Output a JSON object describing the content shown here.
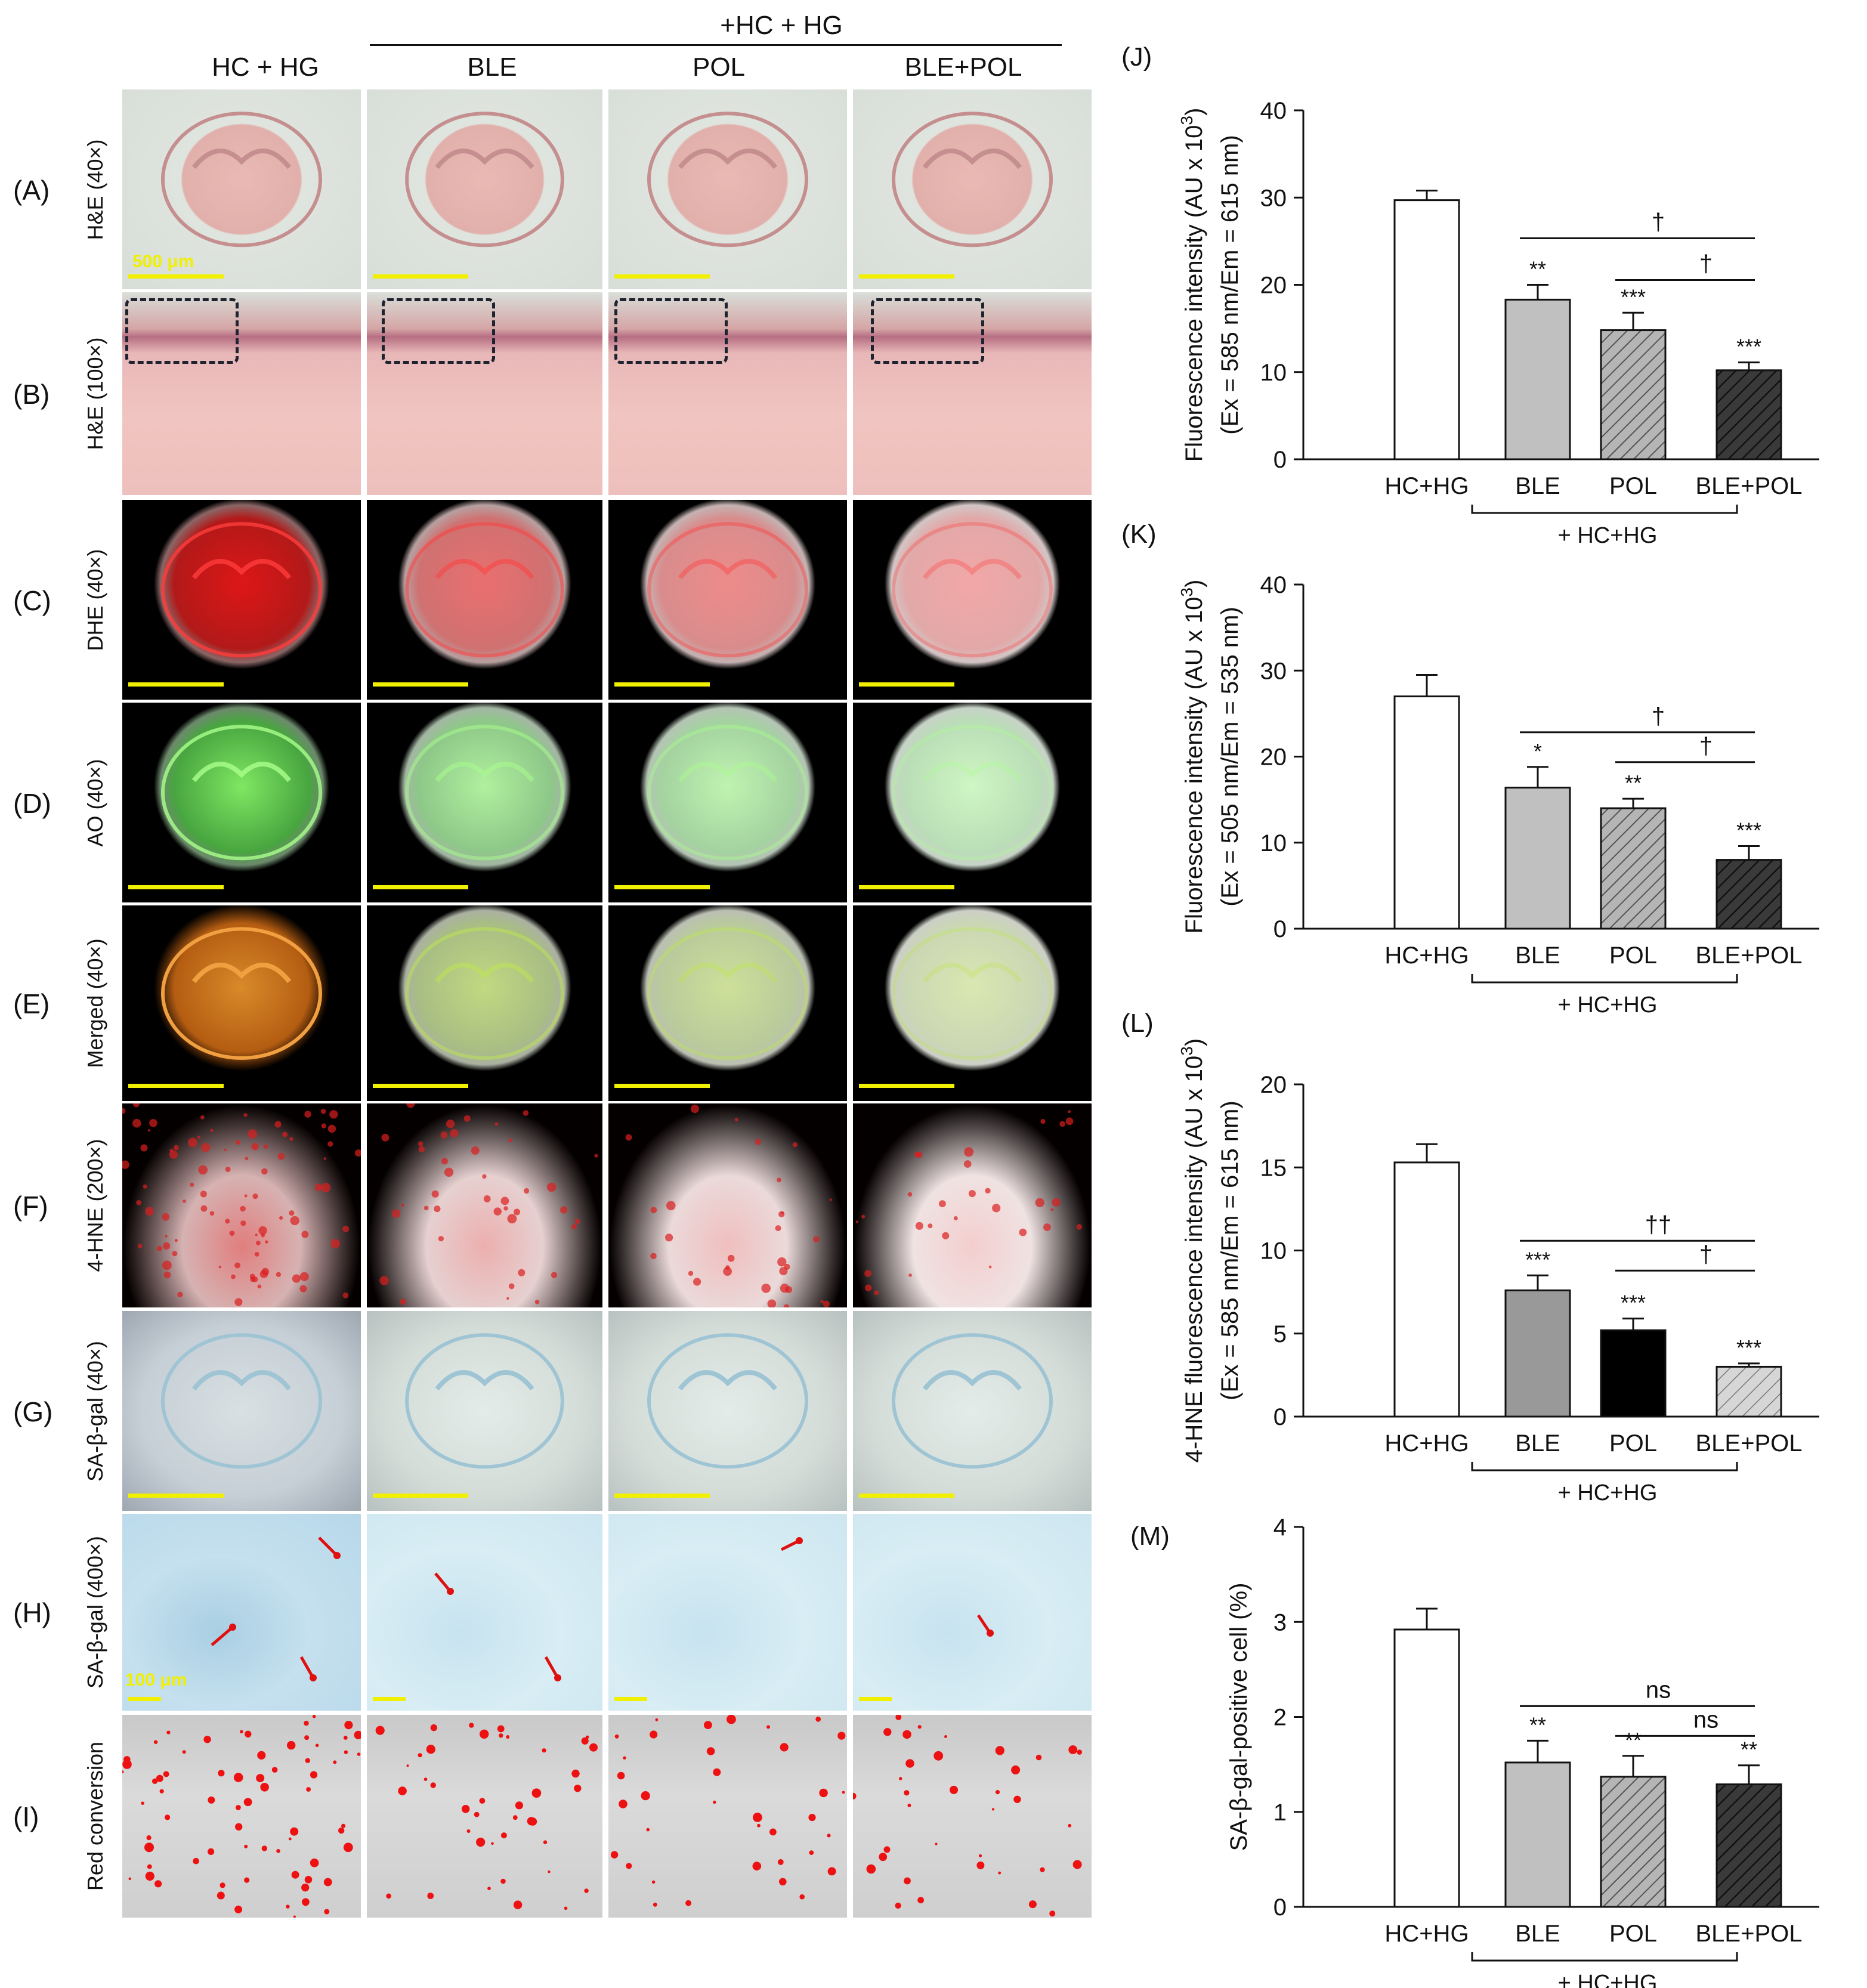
{
  "figure": {
    "column_header_group": "+HC + HG",
    "column_titles": [
      "HC + HG",
      "BLE",
      "POL",
      "BLE+POL"
    ],
    "rows": [
      {
        "letter": "(A)",
        "label": "H&E (40×)",
        "type": "he_low"
      },
      {
        "letter": "(B)",
        "label": "H&E (100×)",
        "type": "he_high"
      },
      {
        "letter": "(C)",
        "label": "DHE (40×)",
        "type": "dhe"
      },
      {
        "letter": "(D)",
        "label": "AO (40×)",
        "type": "ao"
      },
      {
        "letter": "(E)",
        "label": "Merged (40×)",
        "type": "merged"
      },
      {
        "letter": "(F)",
        "label": "4-HNE (200×)",
        "type": "hne"
      },
      {
        "letter": "(G)",
        "label": "SA-β-gal (40×)",
        "type": "sagal_low"
      },
      {
        "letter": "(H)",
        "label": "SA-β-gal (400×)",
        "type": "sagal_high"
      },
      {
        "letter": "(I)",
        "label": "Red conversion",
        "type": "red_conv"
      }
    ],
    "scale_bar_labels": {
      "row_A": "500  μm",
      "row_H": "100 μm"
    }
  },
  "chart_data": [
    {
      "panel": "(J)",
      "type": "bar",
      "ylabel_line1": "Fluorescence intensity (AU x 10",
      "ylabel_sup": "3",
      "ylabel_line1_end": ")",
      "ylabel_line2": "(Ex = 585 nm/Em = 615 nm)",
      "categories": [
        "HC+HG",
        "BLE",
        "POL",
        "BLE+POL"
      ],
      "values": [
        29.7,
        18.3,
        14.8,
        10.2
      ],
      "errors": [
        1.1,
        1.7,
        2.0,
        0.9
      ],
      "significance": [
        "",
        "**",
        "***",
        "***"
      ],
      "ylim": [
        0,
        40
      ],
      "yticks": [
        0,
        10,
        20,
        30,
        40
      ],
      "comparisons": [
        {
          "from": "BLE",
          "to": "BLE+POL",
          "label": "†"
        },
        {
          "from": "POL",
          "to": "BLE+POL",
          "label": "†"
        }
      ],
      "group_label": "+ HC+HG",
      "fills": [
        "white",
        "#c0c0c0",
        "hatch-gray",
        "hatch-dark"
      ]
    },
    {
      "panel": "(K)",
      "type": "bar",
      "ylabel_line1": "Fluorescence intensity (AU x 10",
      "ylabel_sup": "3",
      "ylabel_line1_end": ")",
      "ylabel_line2": "(Ex = 505 nm/Em = 535 nm)",
      "categories": [
        "HC+HG",
        "BLE",
        "POL",
        "BLE+POL"
      ],
      "values": [
        27.0,
        16.4,
        14.0,
        8.0
      ],
      "errors": [
        2.5,
        2.4,
        1.1,
        1.6
      ],
      "significance": [
        "",
        "*",
        "**",
        "***"
      ],
      "ylim": [
        0,
        40
      ],
      "yticks": [
        0,
        10,
        20,
        30,
        40
      ],
      "comparisons": [
        {
          "from": "BLE",
          "to": "BLE+POL",
          "label": "†"
        },
        {
          "from": "POL",
          "to": "BLE+POL",
          "label": "†"
        }
      ],
      "group_label": "+ HC+HG",
      "fills": [
        "white",
        "#c0c0c0",
        "hatch-gray",
        "hatch-dark"
      ]
    },
    {
      "panel": "(L)",
      "type": "bar",
      "ylabel_line1": "4-HNE fluorescence intensity (AU x 10",
      "ylabel_sup": "3",
      "ylabel_line1_end": ")",
      "ylabel_line2": "(Ex = 585 nm/Em = 615 nm)",
      "categories": [
        "HC+HG",
        "BLE",
        "POL",
        "BLE+POL"
      ],
      "values": [
        15.3,
        7.6,
        5.2,
        3.0
      ],
      "errors": [
        1.1,
        0.9,
        0.7,
        0.2
      ],
      "significance": [
        "",
        "***",
        "***",
        "***"
      ],
      "ylim": [
        0,
        20
      ],
      "yticks": [
        0,
        5,
        10,
        15,
        20
      ],
      "comparisons": [
        {
          "from": "BLE",
          "to": "BLE+POL",
          "label": "††"
        },
        {
          "from": "POL",
          "to": "BLE+POL",
          "label": "†"
        }
      ],
      "group_label": "+ HC+HG",
      "fills": [
        "white",
        "#999999",
        "#000000",
        "hatch-light"
      ]
    },
    {
      "panel": "(M)",
      "type": "bar",
      "ylabel_line1": "SA-β-gal-positive cell (%)",
      "ylabel_sup": "",
      "ylabel_line1_end": "",
      "ylabel_line2": "",
      "categories": [
        "HC+HG",
        "BLE",
        "POL",
        "BLE+POL"
      ],
      "values": [
        2.92,
        1.52,
        1.37,
        1.29
      ],
      "errors": [
        0.22,
        0.23,
        0.22,
        0.2
      ],
      "significance": [
        "",
        "**",
        "**",
        "**"
      ],
      "ylim": [
        0,
        4
      ],
      "yticks": [
        0,
        1,
        2,
        3,
        4
      ],
      "comparisons": [
        {
          "from": "BLE",
          "to": "BLE+POL",
          "label": "ns"
        },
        {
          "from": "POL",
          "to": "BLE+POL",
          "label": "ns"
        }
      ],
      "group_label": "+ HC+HG",
      "fills": [
        "white",
        "#c0c0c0",
        "hatch-gray",
        "hatch-dark"
      ]
    }
  ]
}
